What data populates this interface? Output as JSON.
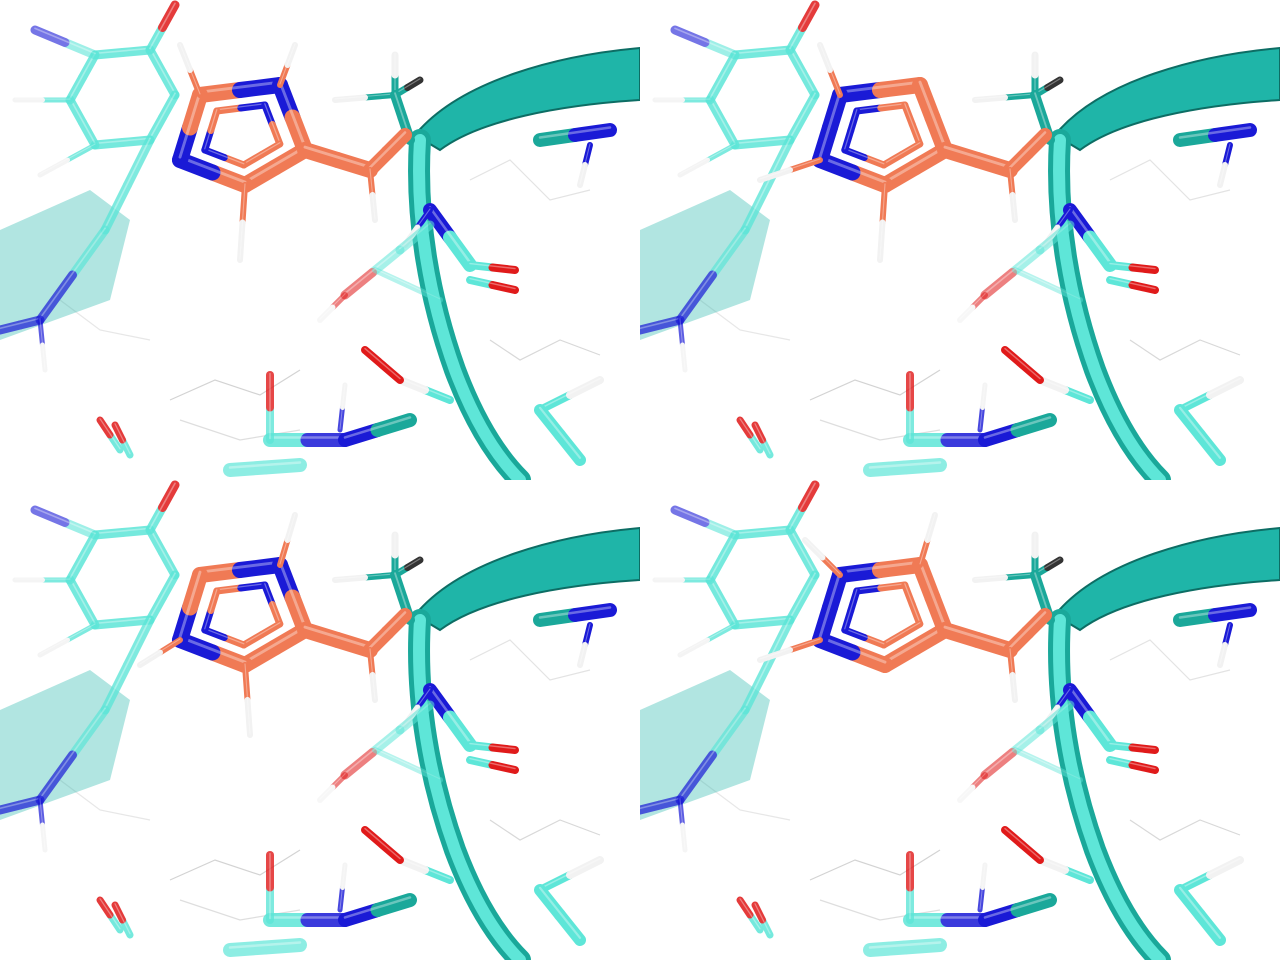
{
  "figure": {
    "layout": "2x2",
    "style": "stick-and-cartoon molecular rendering",
    "panels": [
      {
        "id": "top-left",
        "ligand_tautomer": "1"
      },
      {
        "id": "top-right",
        "ligand_tautomer": "2"
      },
      {
        "id": "bottom-left",
        "ligand_tautomer": "3"
      },
      {
        "id": "bottom-right",
        "ligand_tautomer": "4"
      }
    ],
    "colors": {
      "ligand_carbon": "#f07a55",
      "ligand_carbon_highlight": "#ffc0a0",
      "protein_carbon": "#5ee6d8",
      "protein_carbon_dark": "#1aa89a",
      "cartoon": "#1fb5a8",
      "nitrogen": "#1a1ad6",
      "oxygen": "#e01a1a",
      "hydrogen": "#f2f2f2",
      "background": "#ffffff"
    }
  }
}
